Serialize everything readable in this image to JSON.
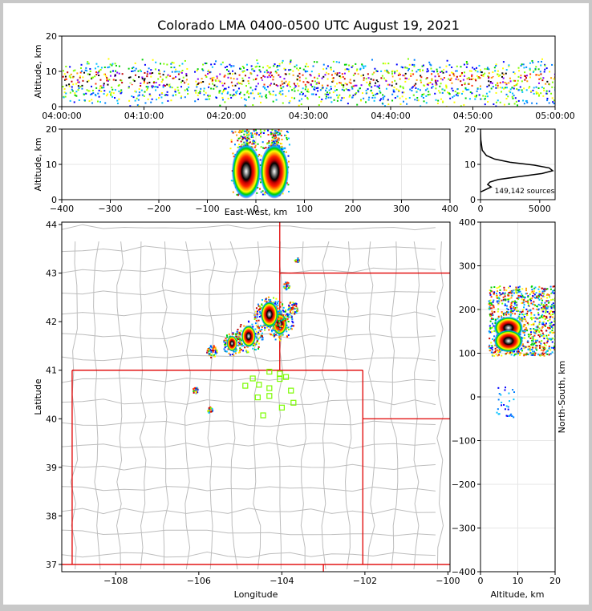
{
  "chart_data": [
    {
      "type": "heatmap",
      "title": "Colorado LMA 0400-0500 UTC August 19, 2021",
      "ylabel": "Altitude, km",
      "ylim": [
        0,
        20
      ],
      "yticks": [
        "0",
        "10",
        "20"
      ],
      "xticks": [
        "04:00:00",
        "04:10:00",
        "04:20:00",
        "04:30:00",
        "04:40:00",
        "04:50:00",
        "05:00:00"
      ],
      "xlim": [
        "04:00:00",
        "05:00:00"
      ],
      "source_band_altitude_km": [
        2,
        12
      ],
      "density_core_altitude_km": [
        6,
        10
      ],
      "gaps_minutes": [
        7.5,
        15.7
      ]
    },
    {
      "type": "heatmap",
      "xlabel": "East-West, km",
      "ylabel": "Altitude, km",
      "xlim": [
        -400,
        400
      ],
      "ylim": [
        0,
        20
      ],
      "xticks": [
        "−400",
        "−300",
        "−200",
        "−100",
        "0",
        "100",
        "200",
        "300",
        "400"
      ],
      "yticks": [
        "0",
        "10",
        "20"
      ],
      "cores": [
        {
          "x_km": -20,
          "altitude_km": 8
        },
        {
          "x_km": 38,
          "altitude_km": 8
        }
      ]
    },
    {
      "type": "line",
      "xticks": [
        "0",
        "5000"
      ],
      "yticks": [
        "0",
        "10",
        "20"
      ],
      "xlim": [
        0,
        6300
      ],
      "ylim": [
        0,
        20
      ],
      "annotation": "149,142 sources",
      "series": [
        {
          "points": [
            [
              0,
              20
            ],
            [
              30,
              17
            ],
            [
              150,
              14
            ],
            [
              500,
              12.5
            ],
            [
              1200,
              11.5
            ],
            [
              2500,
              10.6
            ],
            [
              4500,
              9.8
            ],
            [
              5800,
              9.0
            ],
            [
              6100,
              8.2
            ],
            [
              5200,
              7.4
            ],
            [
              3000,
              6.4
            ],
            [
              1500,
              5.7
            ],
            [
              800,
              5.0
            ],
            [
              600,
              4.3
            ],
            [
              900,
              3.6
            ],
            [
              400,
              2.8
            ],
            [
              150,
              2.4
            ],
            [
              0,
              2.2
            ]
          ]
        }
      ]
    },
    {
      "type": "map",
      "xlabel": "Longitude",
      "ylabel": "Latitude",
      "xlim": [
        -109.3,
        -99.95
      ],
      "ylim": [
        36.85,
        44.05
      ],
      "xticks": [
        "−108",
        "−106",
        "−104",
        "−102",
        "−100"
      ],
      "yticks": [
        "37",
        "38",
        "39",
        "40",
        "41",
        "42",
        "43",
        "44"
      ],
      "state_border_color": "#e00000",
      "county_line_color": "#bdbdbd",
      "station_color": "#7CFC00",
      "stations": [
        {
          "lon": -104.3,
          "lat": 40.97
        },
        {
          "lon": -104.05,
          "lat": 40.93
        },
        {
          "lon": -103.9,
          "lat": 40.86
        },
        {
          "lon": -104.7,
          "lat": 40.83
        },
        {
          "lon": -104.05,
          "lat": 40.82
        },
        {
          "lon": -104.55,
          "lat": 40.7
        },
        {
          "lon": -104.88,
          "lat": 40.68
        },
        {
          "lon": -104.3,
          "lat": 40.63
        },
        {
          "lon": -103.78,
          "lat": 40.58
        },
        {
          "lon": -104.58,
          "lat": 40.44
        },
        {
          "lon": -104.3,
          "lat": 40.47
        },
        {
          "lon": -103.72,
          "lat": 40.33
        },
        {
          "lon": -104.0,
          "lat": 40.23
        },
        {
          "lon": -104.45,
          "lat": 40.07
        }
      ],
      "sources": [
        {
          "lon": -104.05,
          "lat": 41.95,
          "size": 0.25
        },
        {
          "lon": -104.3,
          "lat": 42.15,
          "size": 0.3
        },
        {
          "lon": -104.8,
          "lat": 41.7,
          "size": 0.25
        },
        {
          "lon": -105.2,
          "lat": 41.55,
          "size": 0.18
        },
        {
          "lon": -105.7,
          "lat": 41.4,
          "size": 0.1
        },
        {
          "lon": -103.75,
          "lat": 42.3,
          "size": 0.1
        },
        {
          "lon": -103.9,
          "lat": 42.75,
          "size": 0.06
        },
        {
          "lon": -103.65,
          "lat": 43.28,
          "size": 0.04
        },
        {
          "lon": -106.1,
          "lat": 40.6,
          "size": 0.05
        },
        {
          "lon": -105.75,
          "lat": 40.2,
          "size": 0.05
        }
      ]
    },
    {
      "type": "heatmap",
      "xlabel": "Altitude, km",
      "ylabel": "North-South, km",
      "xlim": [
        0,
        20
      ],
      "ylim": [
        -400,
        400
      ],
      "xticks": [
        "0",
        "10",
        "20"
      ],
      "yticks": [
        "−400",
        "−300",
        "−200",
        "−100",
        "0",
        "100",
        "200",
        "300",
        "400"
      ],
      "cores": [
        {
          "altitude_km": 7.5,
          "y_km": 158
        },
        {
          "altitude_km": 7.5,
          "y_km": 128
        }
      ]
    }
  ]
}
